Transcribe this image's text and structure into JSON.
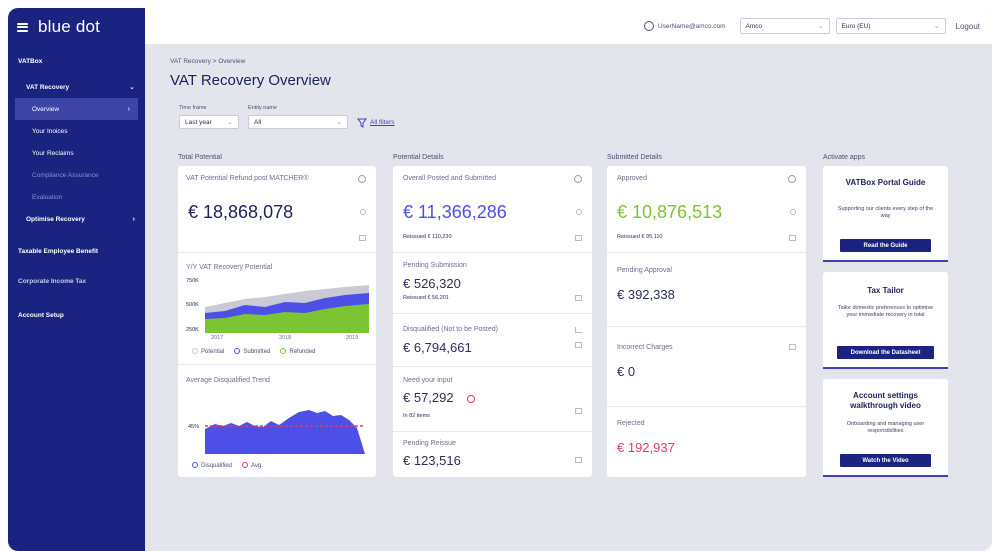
{
  "brand": {
    "logo": "blue dot"
  },
  "sidebar": {
    "items": [
      {
        "label": "VATBox"
      },
      {
        "label": "VAT Recovery"
      },
      {
        "label": "Overview"
      },
      {
        "label": "Your Inoices"
      },
      {
        "label": "Your Reclaims"
      },
      {
        "label": "Compliance Assurance"
      },
      {
        "label": "Evaluation"
      },
      {
        "label": "Optimise Recovery"
      },
      {
        "label": "Taxable Employee Benefit"
      },
      {
        "label": "Corporate Income Tax"
      },
      {
        "label": "Account Setup"
      }
    ]
  },
  "topbar": {
    "user_email": "UserName@amco.com",
    "company_select": "Amco",
    "currency_select": "Euro (EU)",
    "logout": "Logout"
  },
  "breadcrumb": "VAT Recovery > Overview",
  "page_title": "VAT Recovery Overview",
  "filters": {
    "time_frame_label": "Time frame",
    "time_frame_value": "Last year",
    "entity_label": "Entity name",
    "entity_value": "All",
    "all_filters": "All filters"
  },
  "sections": {
    "total": "Total Potential",
    "potential": "Potential Details",
    "submitted": "Submitted Details",
    "apps": "Activate apps"
  },
  "total_card": {
    "title": "VAT Potential Refund post MATCHER®",
    "value": "€ 18,868,078",
    "yy_title": "Y/Y VAT Recovery Potential",
    "yy_ticks": [
      "750K",
      "500K",
      "250K"
    ],
    "yy_years": [
      "2017",
      "2018",
      "2019"
    ],
    "yy_legend": [
      "Potential",
      "Submitted",
      "Refunded"
    ],
    "trend_title": "Average Disqualified Trend",
    "trend_tick": "45%",
    "trend_legend": [
      "Disqualified",
      "Avg."
    ]
  },
  "potential_card": {
    "overall_title": "Overall Posted and Submitted",
    "overall_value": "€ 11,366,286",
    "overall_reissued": "Reissued € 110,230",
    "pending_title": "Pending Submission",
    "pending_value": "€ 526,320",
    "pending_reissued": "Reissued € 56,201",
    "disq_title": "Disqualified (Not to be Posted)",
    "disq_value": "€ 6,794,661",
    "input_title": "Need your input",
    "input_value": "€ 57,292",
    "input_items": "In 82 items",
    "reissue_title": "Pending Reissue",
    "reissue_value": "€ 123,516"
  },
  "submitted_card": {
    "approved_title": "Approved",
    "approved_value": "€ 10,876,513",
    "approved_reissued": "Reissued € 95,110",
    "pending_title": "Pending Approval",
    "pending_value": "€ 392,338",
    "incorrect_title": "Incorrect Charges",
    "incorrect_value": "€ 0",
    "rejected_title": "Rejected",
    "rejected_value": "€ 192,937"
  },
  "apps": [
    {
      "title": "VATBox Portal Guide",
      "desc": "Supporting our clients every step of the way",
      "button": "Read the Guide"
    },
    {
      "title": "Tax Tailor",
      "desc": "Tailor domestic preferences to optimise your immediate recovery in total",
      "button": "Download the Datasheet"
    },
    {
      "title": "Account settings walkthrough video",
      "desc": "Onboarding and managing user responsibilities",
      "button": "Watch the Video"
    }
  ],
  "colors": {
    "sidebar": "#1b2381",
    "potential_blue": "#4c50e6",
    "approved_green": "#7cc532",
    "rejected_pink": "#e5396a"
  }
}
